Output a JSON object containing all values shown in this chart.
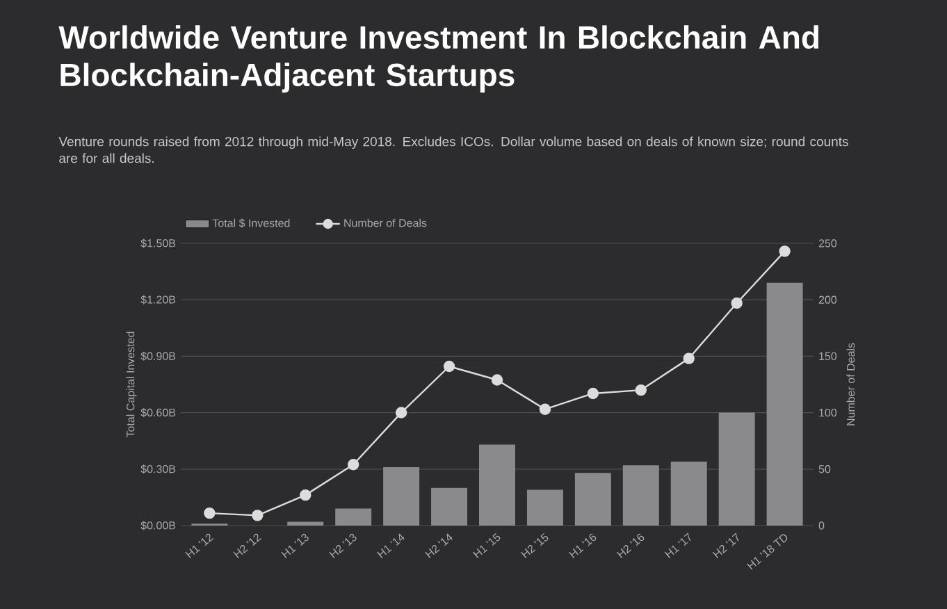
{
  "chart_data": {
    "type": "bar",
    "title": "Worldwide Venture Investment In Blockchain And Blockchain-Adjacent Startups",
    "subtitle": "Venture rounds raised from 2012 through mid-May 2018. Excludes ICOs. Dollar volume based on deals of known size; round counts are for all deals.",
    "ylabel": "Total Capital Invested",
    "y2label": "Number of Deals",
    "categories": [
      "H1 '12",
      "H2 '12",
      "H1 '13",
      "H2 '13",
      "H1 '14",
      "H2 '14",
      "H1 '15",
      "H2 '15",
      "H1 '16",
      "H2 '16",
      "H1 '17",
      "H2 '17",
      "H1 '18 TD"
    ],
    "series": [
      {
        "name": "Total $ Invested",
        "color": "#8a8a8c",
        "values": [
          0.01,
          0,
          0.02,
          0.09,
          0.31,
          0.2,
          0.43,
          0.19,
          0.28,
          0.32,
          0.34,
          0.6,
          1.29
        ]
      },
      {
        "name": "Number of Deals",
        "type": "line",
        "axis": "y2",
        "color": "#dcdcdc",
        "marker": "circle",
        "values": [
          11,
          9,
          27,
          54,
          100,
          141,
          129,
          103,
          117,
          120,
          148,
          197,
          243
        ]
      }
    ],
    "ylim": [
      0,
      1.5
    ],
    "yticks": [
      {
        "value": 0,
        "label": "$0.00B"
      },
      {
        "value": 0.3,
        "label": "$0.30B"
      },
      {
        "value": 0.6,
        "label": "$0.60B"
      },
      {
        "value": 0.9,
        "label": "$0.90B"
      },
      {
        "value": 1.2,
        "label": "$1.20B"
      },
      {
        "value": 1.5,
        "label": "$1.50B"
      }
    ],
    "y2lim": [
      0,
      250
    ],
    "y2ticks": [
      0,
      50,
      100,
      150,
      200,
      250
    ],
    "grid": "y",
    "legend": "top left"
  }
}
